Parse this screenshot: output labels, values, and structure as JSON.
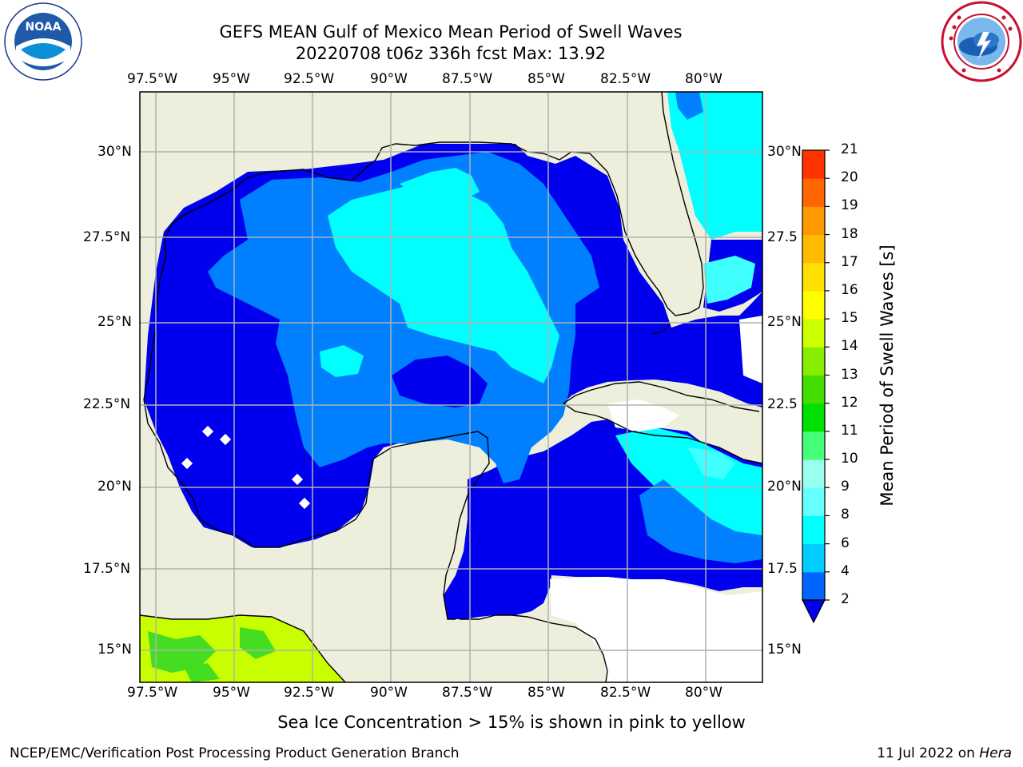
{
  "header": {
    "title_line1": "GEFS MEAN Gulf of Mexico Mean Period of Swell Waves",
    "title_line2": "20220708 t06z 336h fcst   Max: 13.92"
  },
  "logos": {
    "left": {
      "name": "noaa-logo",
      "text": "NOAA"
    },
    "right": {
      "name": "nws-logo",
      "text": "NATIONAL WEATHER SERVICE"
    }
  },
  "map": {
    "lon_labels": [
      "97.5°W",
      "95°W",
      "92.5°W",
      "90°W",
      "87.5°W",
      "85°W",
      "82.5°W",
      "80°W"
    ],
    "lat_labels_left": [
      "30°N",
      "27.5°N",
      "25°N",
      "22.5°N",
      "20°N",
      "17.5°N",
      "15°N"
    ],
    "lat_labels_right": [
      "30°N",
      "27.5",
      "25°N",
      "22.5",
      "20°N",
      "17.5",
      "15°N"
    ],
    "colors": {
      "land": "#eeeedd",
      "ocean_2_4": "#0000ee",
      "ocean_4_6": "#0080ff",
      "ocean_6_8": "#00ffff",
      "ocean_8_10": "#40ffff",
      "pacific_12_13": "#c8ff00",
      "pacific_13_14": "#40e020",
      "grid": "#b0b0b0"
    }
  },
  "colorbar": {
    "label": "Mean Period of Swell Waves [s]",
    "ticks": [
      "2",
      "4",
      "6",
      "8",
      "9",
      "10",
      "11",
      "12",
      "13",
      "14",
      "15",
      "16",
      "17",
      "18",
      "19",
      "20",
      "21"
    ],
    "colors": [
      "#0066ff",
      "#00ccff",
      "#00ffff",
      "#66ffff",
      "#99ffee",
      "#44ff77",
      "#00e000",
      "#44dd00",
      "#88ee00",
      "#ccff00",
      "#ffff00",
      "#ffe000",
      "#ffbb00",
      "#ff9900",
      "#ff6600",
      "#ff3300",
      "#ff0000"
    ],
    "extend_color": "#0000ee"
  },
  "footer": {
    "note": "Sea Ice Concentration > 15% is shown in pink to yellow",
    "credit": "NCEP/EMC/Verification Post Processing Product Generation Branch",
    "date": "11 Jul 2022 on ",
    "host": "Hera"
  }
}
